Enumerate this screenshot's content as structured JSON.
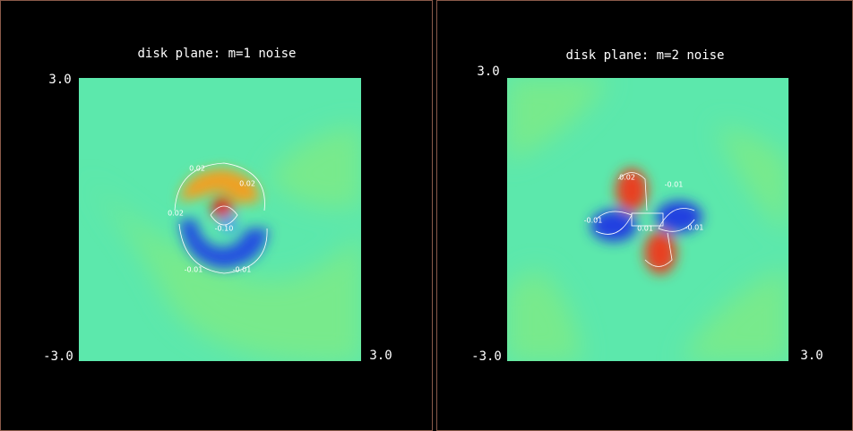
{
  "panels": [
    {
      "title": "disk plane: m=1 noise",
      "y_max_label": "3.0",
      "x_min_label": "-3.0",
      "x_max_label": "3.0",
      "contour_labels": [
        "0.02",
        "0.02",
        "0.02",
        "-0.10",
        "-0.01",
        "-0.01"
      ]
    },
    {
      "title": "disk plane: m=2 noise",
      "y_max_label": "3.0",
      "x_min_label": "-3.0",
      "x_max_label": "3.0",
      "contour_labels": [
        "0.02",
        "-0.01",
        "-0.01",
        "-0.01",
        "0.01"
      ]
    }
  ]
}
